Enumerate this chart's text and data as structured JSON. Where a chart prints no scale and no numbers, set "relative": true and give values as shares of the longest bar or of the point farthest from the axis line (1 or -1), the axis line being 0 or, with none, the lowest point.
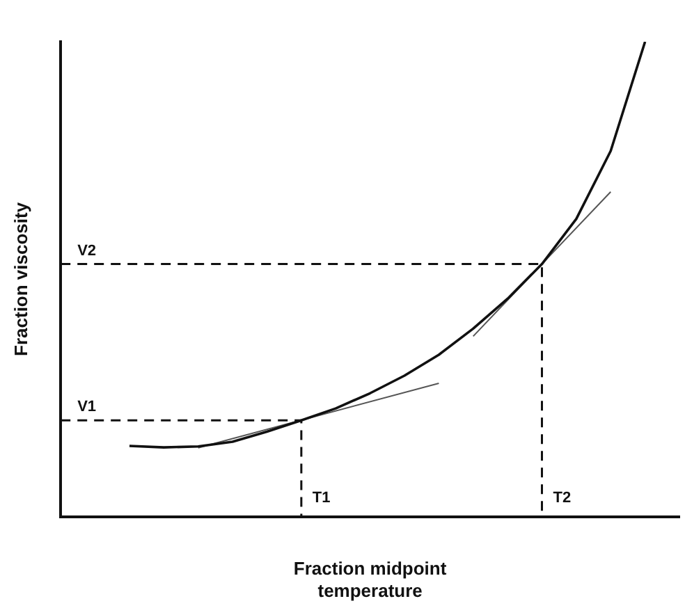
{
  "chart_data": {
    "type": "line",
    "relative": true,
    "grid": false,
    "legend": false,
    "marker": "none",
    "line_style": "solid",
    "xlabel": "Fraction midpoint\ntemperature",
    "ylabel": "Fraction viscosity",
    "categories": [
      null,
      null,
      null,
      null,
      null,
      null,
      null,
      null,
      null,
      null,
      null,
      null,
      null,
      null,
      null,
      null,
      null,
      null,
      null
    ],
    "series": [
      {
        "color": "#111111",
        "values": [
          null,
          null,
          0.149,
          0.146,
          0.148,
          0.158,
          0.179,
          0.203,
          0.228,
          0.26,
          0.297,
          0.341,
          0.396,
          0.459,
          0.532,
          0.627,
          0.77,
          1,
          null
        ]
      },
      {
        "color": "#555555",
        "values": [
          null,
          null,
          null,
          null,
          0.145,
          null,
          null,
          null,
          null,
          null,
          null,
          0.281,
          null,
          null,
          null,
          null,
          null,
          null,
          null
        ]
      },
      {
        "color": "#555555",
        "values": [
          null,
          null,
          null,
          null,
          null,
          null,
          null,
          null,
          null,
          null,
          null,
          null,
          0.38,
          null,
          null,
          null,
          0.684,
          null,
          null
        ]
      }
    ],
    "ref_lines": [
      {
        "axis": "y",
        "value": 0.203,
        "label": "V1",
        "line_style": "dashed",
        "color": "#111111"
      },
      {
        "axis": "y",
        "value": 0.532,
        "label": "V2",
        "line_style": "dashed",
        "color": "#111111"
      }
    ],
    "annotations": [
      "T1",
      "T2"
    ]
  }
}
